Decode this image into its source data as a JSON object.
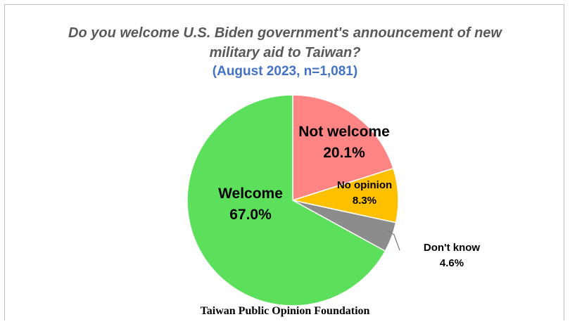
{
  "chart_data": {
    "type": "pie",
    "title_line1": "Do you welcome U.S. Biden government's announcement of new",
    "title_line2": "military aid to Taiwan?",
    "subtitle": "(August 2023, n=1,081)",
    "slices": [
      {
        "label": "Not welcome",
        "value": 20.1,
        "value_text": "20.1%",
        "color": "#ff8585"
      },
      {
        "label": "No opinion",
        "value": 8.3,
        "value_text": "8.3%",
        "color": "#ffc000"
      },
      {
        "label": "Don't know",
        "value": 4.6,
        "value_text": "4.6%",
        "color": "#8c8c8c"
      },
      {
        "label": "Welcome",
        "value": 67.0,
        "value_text": "67.0%",
        "color": "#5ce05c"
      }
    ],
    "start_angle_deg": 0,
    "direction": "clockwise",
    "source": "Taiwan Public Opinion Foundation"
  }
}
